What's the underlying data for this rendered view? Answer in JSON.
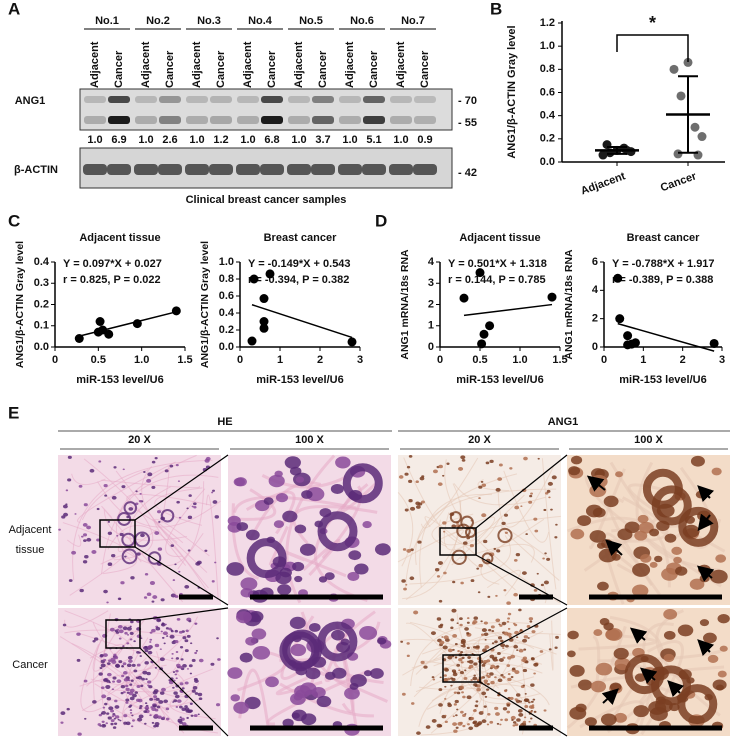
{
  "panel_labels": [
    "A",
    "B",
    "C",
    "D",
    "E"
  ],
  "blot": {
    "samples": [
      "No.1",
      "No.2",
      "No.3",
      "No.4",
      "No.5",
      "No.6",
      "No.7"
    ],
    "lanes": [
      "Adjacent",
      "Cancer"
    ],
    "proteins": [
      "ANG1",
      "β-ACTIN"
    ],
    "ratios": [
      "1.0",
      "6.9",
      "1.0",
      "2.6",
      "1.0",
      "1.2",
      "1.0",
      "6.8",
      "1.0",
      "3.7",
      "1.0",
      "5.1",
      "1.0",
      "0.9"
    ],
    "markers_ang1": [
      "- 70",
      "- 55"
    ],
    "marker_actin": "- 42",
    "caption": "Clinical breast cancer samples"
  },
  "chart_data": [
    {
      "type": "dotplot",
      "ylabel": "ANG1/β-ACTIN Gray level",
      "categories": [
        "Adjacent",
        "Cancer"
      ],
      "groups": [
        {
          "color": "#1a1a1a",
          "values": [
            0.06,
            0.08,
            0.1,
            0.12,
            0.09,
            0.15,
            0.1
          ],
          "mean": 0.1,
          "sd": 0.03
        },
        {
          "color": "#6e6e6e",
          "values": [
            0.8,
            0.57,
            0.86,
            0.3,
            0.22,
            0.07,
            0.06
          ],
          "mean": 0.41,
          "sd": 0.33
        }
      ],
      "annotation": "*",
      "ylim": [
        0,
        1.2
      ],
      "yticks": [
        {
          "value": 0,
          "label": "0.0"
        },
        0.2,
        0.4,
        0.6,
        0.8,
        {
          "value": 1,
          "label": "1.0"
        },
        1.2
      ]
    },
    {
      "type": "scatter",
      "title": "Adjacent tissue",
      "equation": "Y = 0.097*X + 0.027",
      "stats": "r = 0.825, P = 0.022",
      "xlabel": "miR-153 level/U6",
      "ylabel": "ANG1/β-ACTIN Gray level",
      "color": "#000000",
      "x": [
        0.28,
        0.5,
        0.52,
        0.55,
        0.62,
        0.95,
        1.4
      ],
      "values": [
        0.04,
        0.07,
        0.12,
        0.08,
        0.06,
        0.11,
        0.17
      ],
      "xlim": [
        0,
        1.5
      ],
      "xticks": [
        0,
        0.5,
        {
          "value": 1,
          "label": "1.0"
        },
        1.5
      ],
      "ylim": [
        0,
        0.4
      ],
      "yticks": [
        {
          "value": 0,
          "label": "0.0"
        },
        0.1,
        0.2,
        0.3,
        0.4
      ]
    },
    {
      "type": "scatter",
      "title": "Breast cancer",
      "equation": "Y = -0.149*X + 0.543",
      "stats": "r = -0.394, P = 0.382",
      "xlabel": "miR-153 level/U6",
      "ylabel": "ANG1/β-ACTIN Gray level",
      "color": "#000000",
      "x": [
        0.35,
        0.3,
        0.6,
        0.75,
        0.6,
        0.6,
        2.8
      ],
      "values": [
        0.8,
        0.07,
        0.57,
        0.86,
        0.3,
        0.22,
        0.06
      ],
      "xlim": [
        0,
        3
      ],
      "xticks": [
        0,
        1,
        2,
        3
      ],
      "ylim": [
        0,
        1
      ],
      "yticks": [
        {
          "value": 0,
          "label": "0.0"
        },
        0.2,
        0.4,
        0.6,
        0.8,
        {
          "value": 1,
          "label": "1.0"
        }
      ]
    },
    {
      "type": "scatter",
      "title": "Adjacent tissue",
      "equation": "Y = 0.501*X + 1.318",
      "stats": "r = 0.144, P = 0.785",
      "xlabel": "miR-153 level/U6",
      "ylabel": "ANG1 mRNA/18s RNA",
      "color": "#000000",
      "x": [
        0.3,
        0.5,
        0.52,
        0.55,
        0.62,
        1.4
      ],
      "values": [
        2.3,
        3.5,
        0.15,
        0.6,
        1.0,
        2.35
      ],
      "xlim": [
        0,
        1.5
      ],
      "xticks": [
        0,
        0.5,
        {
          "value": 1,
          "label": "1.0"
        },
        1.5
      ],
      "ylim": [
        0,
        4
      ],
      "yticks": [
        0,
        1,
        2,
        3,
        4
      ]
    },
    {
      "type": "scatter",
      "title": "Breast cancer",
      "equation": "Y = -0.788*X + 1.917",
      "stats": "r = -0.389, P = 0.388",
      "xlabel": "miR-153 level/U6",
      "ylabel": "ANG1 mRNA/18s RNA",
      "color": "#000000",
      "x": [
        0.35,
        0.4,
        0.6,
        0.6,
        0.7,
        0.8,
        2.8
      ],
      "values": [
        4.85,
        2.0,
        0.8,
        0.15,
        0.2,
        0.3,
        0.25
      ],
      "xlim": [
        0,
        3
      ],
      "xticks": [
        0,
        1,
        2,
        3
      ],
      "ylim": [
        0,
        6
      ],
      "yticks": [
        0,
        2,
        4,
        6
      ]
    }
  ],
  "histology": {
    "stains": [
      "HE",
      "ANG1"
    ],
    "magnifications": [
      "20 X",
      "100 X"
    ],
    "rows": [
      [
        "Adjacent",
        "tissue"
      ],
      [
        "Cancer"
      ]
    ]
  }
}
